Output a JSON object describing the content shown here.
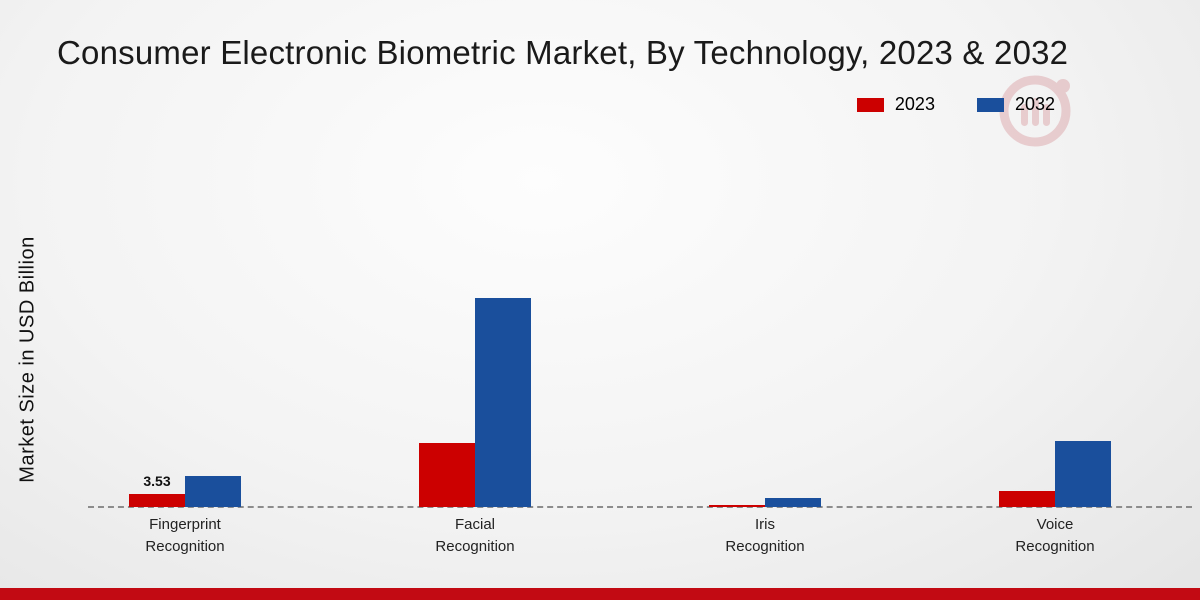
{
  "title": "Consumer Electronic Biometric Market, By Technology, 2023 & 2032",
  "ylabel": "Market Size in USD Billion",
  "legend": [
    {
      "label": "2023",
      "color": "#cc0000"
    },
    {
      "label": "2032",
      "color": "#1a4f9c"
    }
  ],
  "colors": {
    "bar_2023": "#cc0000",
    "bar_2032": "#1a4f9c",
    "baseline": "#8c8c8c",
    "footer_stripe": "#c20a13",
    "title_text": "#1a1a1a"
  },
  "chart_data": {
    "type": "bar",
    "title": "Consumer Electronic Biometric Market, By Technology, 2023 & 2032",
    "ylabel": "Market Size in USD Billion",
    "xlabel": "",
    "categories": [
      "Fingerprint Recognition",
      "Facial Recognition",
      "Iris Recognition",
      "Voice Recognition"
    ],
    "category_label_lines": [
      [
        "Fingerprint",
        "Recognition"
      ],
      [
        "Facial",
        "Recognition"
      ],
      [
        "Iris",
        "Recognition"
      ],
      [
        "Voice",
        "Recognition"
      ]
    ],
    "series": [
      {
        "name": "2023",
        "color": "#cc0000",
        "values": [
          3.53,
          17.5,
          0.5,
          4.5
        ],
        "bar_labels": [
          "3.53",
          "",
          "",
          ""
        ]
      },
      {
        "name": "2032",
        "color": "#1a4f9c",
        "values": [
          8.5,
          57,
          2.5,
          18
        ],
        "bar_labels": [
          "",
          "",
          "",
          ""
        ]
      }
    ],
    "ylim": [
      0,
      60
    ],
    "grid": false,
    "y_axis_ticks_visible": false,
    "legend_position": "top-right",
    "baseline_style": "dashed"
  }
}
